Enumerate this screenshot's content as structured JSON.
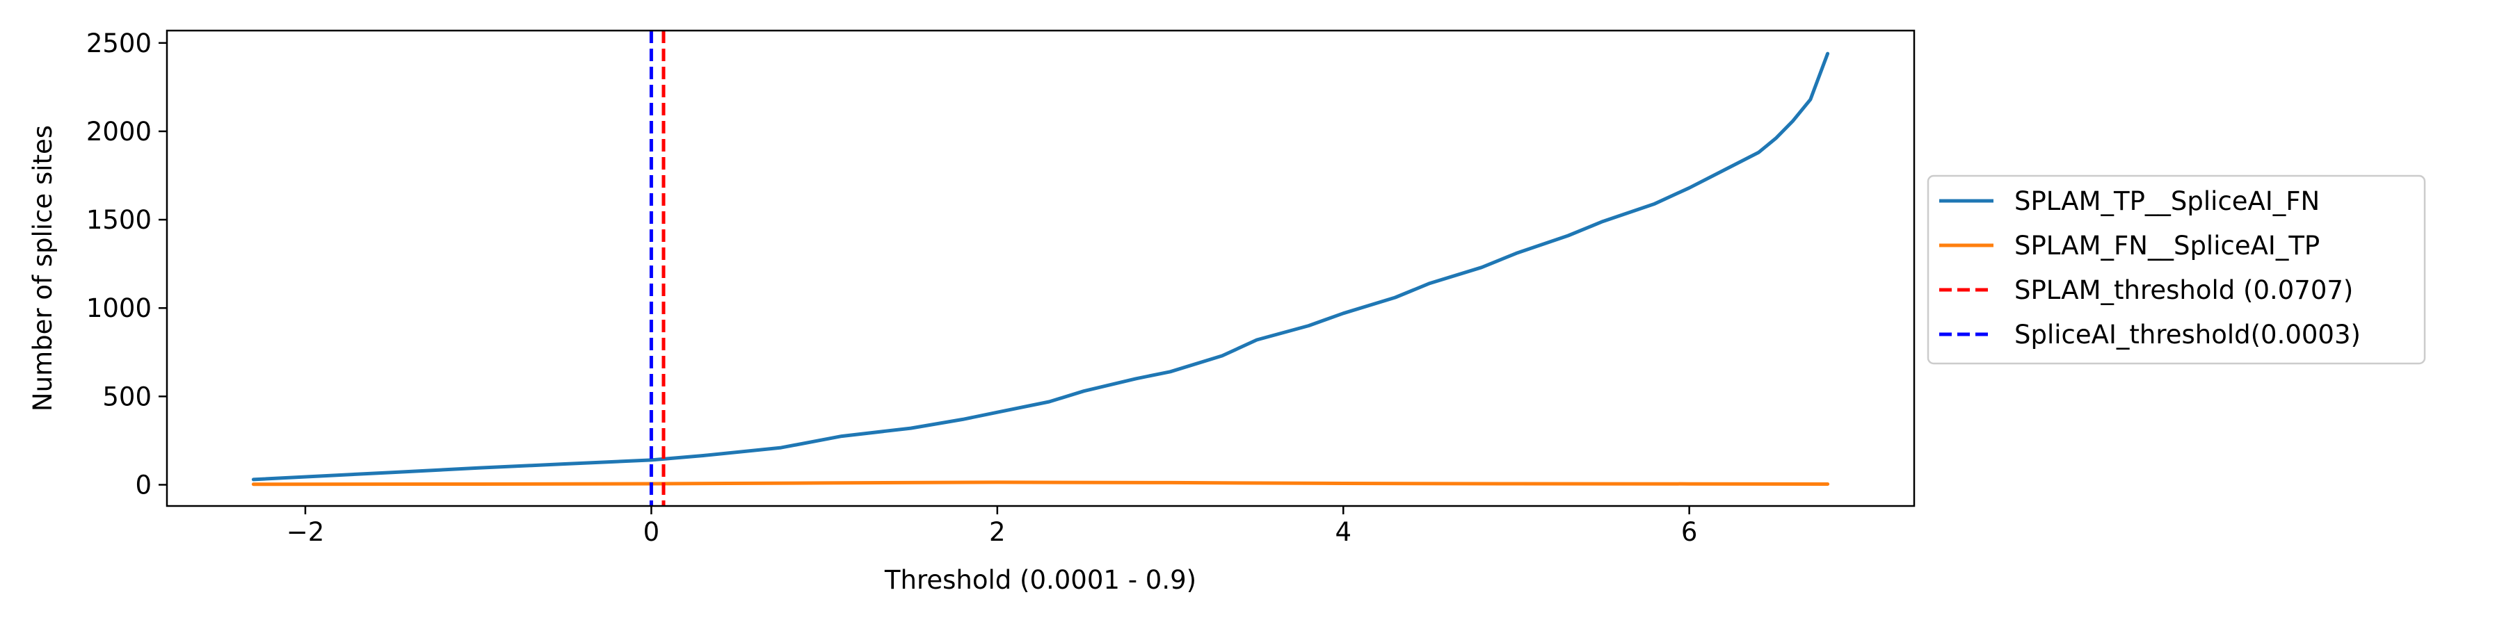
{
  "chart_data": {
    "type": "line",
    "xlabel": "Threshold (0.0001 - 0.9)",
    "ylabel": "Number of splice sites",
    "xlim": [
      -2.8,
      7.3
    ],
    "ylim": [
      -120,
      2570
    ],
    "xticks": [
      -2,
      0,
      2,
      4,
      6
    ],
    "xtick_labels": [
      "−2",
      "0",
      "2",
      "4",
      "6"
    ],
    "yticks": [
      0,
      500,
      1000,
      1500,
      2000,
      2500
    ],
    "ytick_labels": [
      "0",
      "500",
      "1000",
      "1500",
      "2000",
      "2500"
    ],
    "grid": false,
    "legend_position": "outside-right",
    "series": [
      {
        "name": "SPLAM_TP__SpliceAI_FN",
        "color": "#1f77b4",
        "x": [
          -2.3,
          -1.5,
          -1.0,
          -0.5,
          0.0,
          0.3,
          0.75,
          1.1,
          1.5,
          1.8,
          2.0,
          2.3,
          2.5,
          2.8,
          3.0,
          3.3,
          3.5,
          3.8,
          4.0,
          4.3,
          4.5,
          4.8,
          5.0,
          5.3,
          5.5,
          5.8,
          6.0,
          6.2,
          6.4,
          6.5,
          6.6,
          6.7,
          6.8
        ],
        "y": [
          30,
          70,
          95,
          118,
          140,
          165,
          210,
          275,
          320,
          370,
          410,
          470,
          530,
          600,
          640,
          730,
          820,
          900,
          970,
          1060,
          1140,
          1230,
          1310,
          1410,
          1490,
          1590,
          1680,
          1780,
          1880,
          1960,
          2060,
          2180,
          2440
        ]
      },
      {
        "name": "SPLAM_FN__SpliceAI_TP",
        "color": "#ff7f0e",
        "x": [
          -2.3,
          -1.0,
          0.0,
          1.0,
          2.0,
          3.0,
          4.0,
          5.0,
          6.0,
          6.8
        ],
        "y": [
          3,
          4,
          6,
          10,
          14,
          12,
          8,
          6,
          5,
          4
        ]
      }
    ],
    "vlines": [
      {
        "name": "SPLAM_threshold (0.0707)",
        "x": 0.0707,
        "color": "#ff0000",
        "style": "dashed"
      },
      {
        "name": "SpliceAI_threshold(0.0003)",
        "x": 0.0,
        "color": "#0000ff",
        "style": "dashed"
      }
    ]
  }
}
